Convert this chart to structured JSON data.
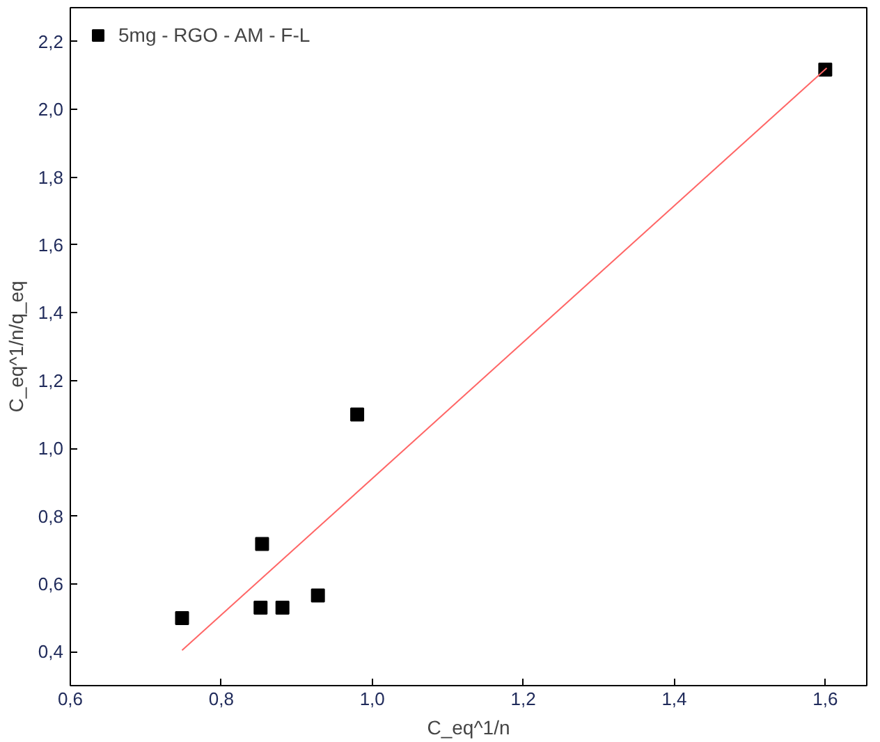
{
  "chart_data": {
    "type": "scatter",
    "xlabel": "C_eq^1/n",
    "ylabel": "C_eq^1/n/q_eq",
    "xlim": [
      0.6,
      1.655
    ],
    "ylim": [
      0.3,
      2.3
    ],
    "xticks": [
      {
        "value": 0.6,
        "label": "0,6"
      },
      {
        "value": 0.8,
        "label": "0,8"
      },
      {
        "value": 1.0,
        "label": "1,0"
      },
      {
        "value": 1.2,
        "label": "1,2"
      },
      {
        "value": 1.4,
        "label": "1,4"
      },
      {
        "value": 1.6,
        "label": "1,6"
      }
    ],
    "yticks": [
      {
        "value": 0.4,
        "label": "0,4"
      },
      {
        "value": 0.6,
        "label": "0,6"
      },
      {
        "value": 0.8,
        "label": "0,8"
      },
      {
        "value": 1.0,
        "label": "1,0"
      },
      {
        "value": 1.2,
        "label": "1,2"
      },
      {
        "value": 1.4,
        "label": "1,4"
      },
      {
        "value": 1.6,
        "label": "1,6"
      },
      {
        "value": 1.8,
        "label": "1,8"
      },
      {
        "value": 2.0,
        "label": "2,0"
      },
      {
        "value": 2.2,
        "label": "2,2"
      }
    ],
    "grid": false,
    "legend": "top left",
    "series": [
      {
        "name": "5mg - RGO - AM - F-L",
        "marker": "square",
        "color": "#000000",
        "x": [
          0.748,
          0.852,
          0.854,
          0.881,
          0.928,
          0.98,
          1.6
        ],
        "values": [
          0.499,
          0.53,
          0.718,
          0.53,
          0.566,
          1.1,
          2.117
        ]
      },
      {
        "type": "line",
        "color": "#ff6666",
        "x": [
          0.748,
          1.602
        ],
        "values": [
          0.404,
          2.122
        ]
      }
    ]
  }
}
